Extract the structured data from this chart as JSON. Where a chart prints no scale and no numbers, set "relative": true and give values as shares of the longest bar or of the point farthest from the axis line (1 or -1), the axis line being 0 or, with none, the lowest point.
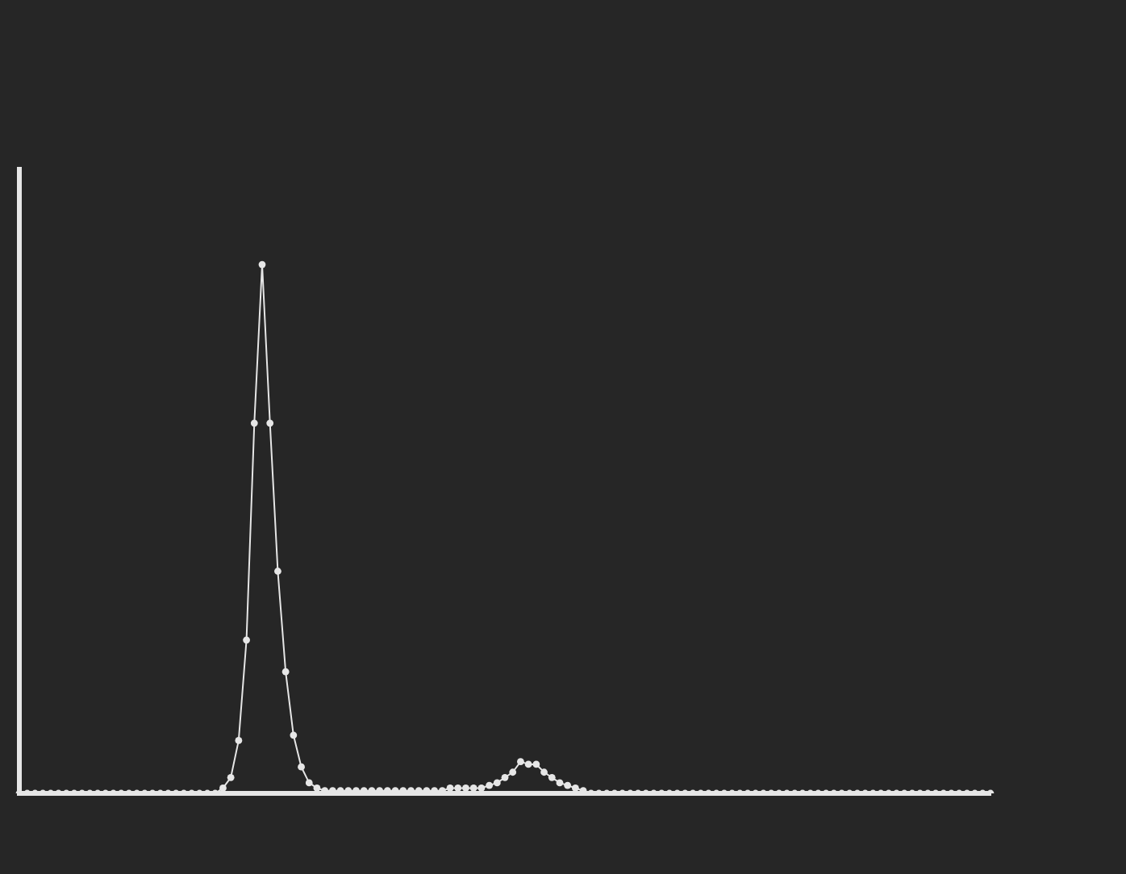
{
  "chart_data": {
    "type": "line",
    "relative": true,
    "color": "#e6e6e6",
    "marker": "circle",
    "tick_labels": false,
    "categories": [
      null,
      null,
      null,
      null,
      null,
      null,
      null,
      null,
      null,
      null,
      null,
      null,
      null,
      null,
      null,
      null,
      null,
      null,
      null,
      null,
      null,
      null,
      null,
      null,
      null,
      null,
      null,
      null,
      null,
      null,
      null,
      null,
      null,
      null,
      null,
      null,
      null,
      null,
      null,
      null,
      null,
      null,
      null,
      null,
      null,
      null,
      null,
      null,
      null,
      null,
      null,
      null,
      null,
      null,
      null,
      null,
      null,
      null,
      null,
      null,
      null,
      null,
      null,
      null,
      null,
      null,
      null,
      null,
      null,
      null,
      null,
      null,
      null,
      null,
      null,
      null,
      null,
      null,
      null,
      null,
      null,
      null,
      null,
      null,
      null,
      null,
      null,
      null,
      null,
      null,
      null,
      null,
      null,
      null,
      null,
      null,
      null,
      null,
      null,
      null,
      null,
      null,
      null,
      null,
      null,
      null,
      null,
      null,
      null,
      null,
      null,
      null,
      null,
      null,
      null,
      null,
      null,
      null,
      null,
      null,
      null,
      null,
      null,
      null,
      null
    ],
    "values": [
      0,
      0,
      0,
      0,
      0,
      0,
      0,
      0,
      0,
      0,
      0,
      0,
      0,
      0,
      0,
      0,
      0,
      0,
      0,
      0,
      0,
      0,
      0,
      0,
      0,
      0,
      0.01,
      0.03,
      0.1,
      0.29,
      0.7,
      1,
      0.7,
      0.42,
      0.23,
      0.11,
      0.05,
      0.02,
      0.01,
      0.005,
      0.005,
      0.005,
      0.005,
      0.005,
      0.005,
      0.005,
      0.005,
      0.005,
      0.005,
      0.005,
      0.005,
      0.005,
      0.005,
      0.005,
      0.005,
      0.01,
      0.01,
      0.01,
      0.01,
      0.01,
      0.015,
      0.02,
      0.03,
      0.04,
      0.06,
      0.055,
      0.055,
      0.04,
      0.03,
      0.02,
      0.015,
      0.01,
      0.005,
      0,
      0,
      0,
      0,
      0,
      0,
      0,
      0,
      0,
      0,
      0,
      0,
      0,
      0,
      0,
      0,
      0,
      0,
      0,
      0,
      0,
      0,
      0,
      0,
      0,
      0,
      0,
      0,
      0,
      0,
      0,
      0,
      0,
      0,
      0,
      0,
      0,
      0,
      0,
      0,
      0,
      0,
      0,
      0,
      0,
      0,
      0,
      0,
      0,
      0,
      0,
      0
    ]
  }
}
